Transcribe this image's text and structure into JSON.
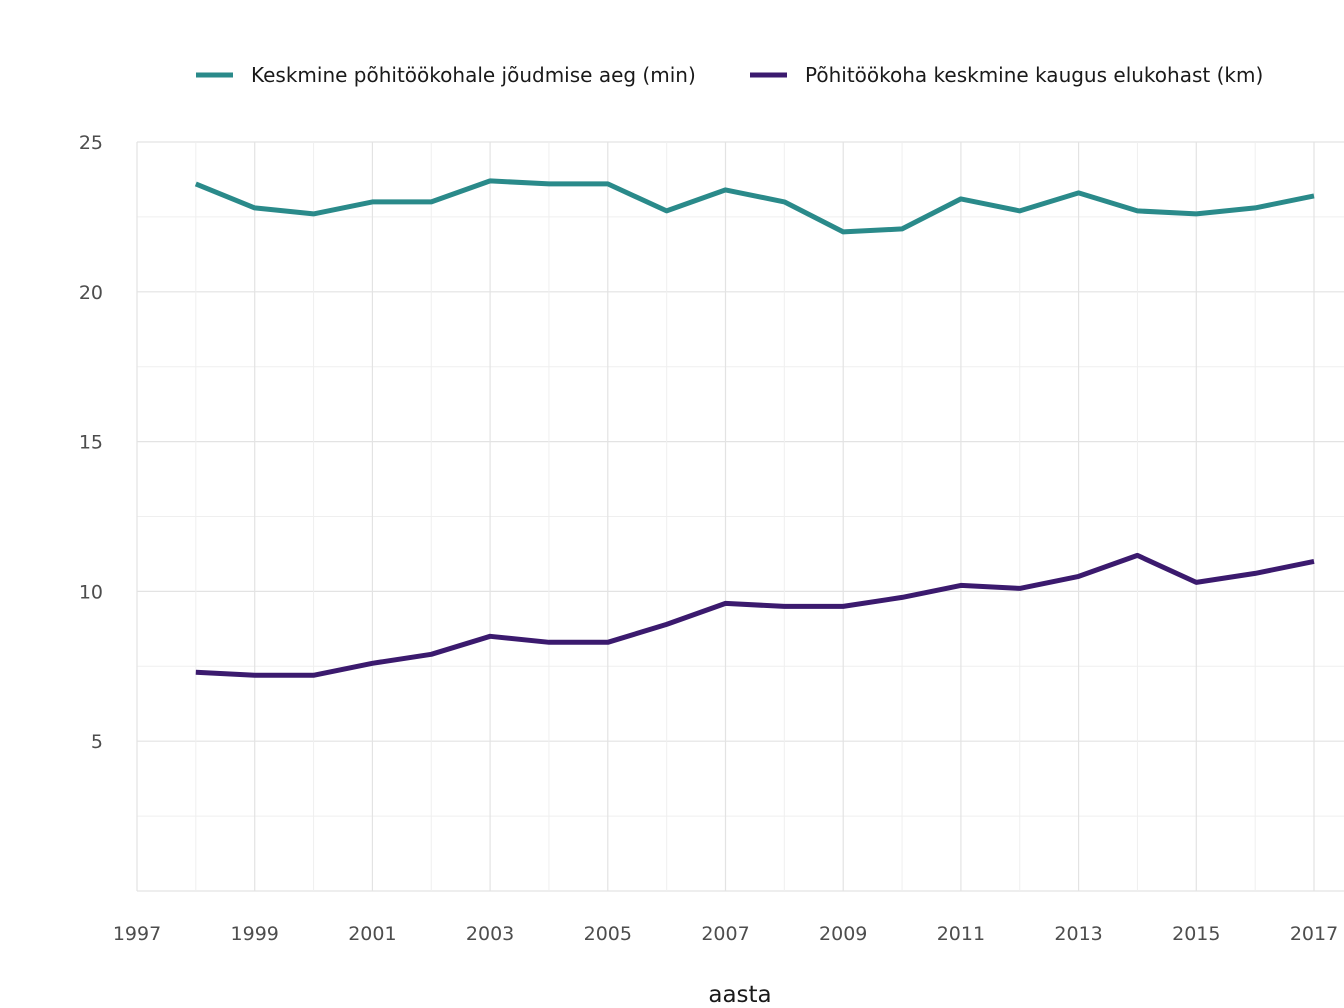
{
  "chart_data": {
    "type": "line",
    "title": "",
    "xlabel": "aasta",
    "ylabel": "",
    "xlim": [
      1997,
      2017
    ],
    "ylim": [
      0,
      25
    ],
    "x_ticks": [
      1997,
      1999,
      2001,
      2003,
      2005,
      2007,
      2009,
      2011,
      2013,
      2015,
      2017
    ],
    "y_ticks": [
      5,
      10,
      15,
      20,
      25
    ],
    "grid": true,
    "legend_position": "top",
    "x": [
      1998,
      1999,
      2000,
      2001,
      2002,
      2003,
      2004,
      2005,
      2006,
      2007,
      2008,
      2009,
      2010,
      2011,
      2012,
      2013,
      2014,
      2015,
      2016,
      2017
    ],
    "series": [
      {
        "name": "Keskmine põhitöökohale jõudmise aeg (min)",
        "color": "#2a8a8a",
        "values": [
          23.6,
          22.8,
          22.6,
          23.0,
          23.0,
          23.7,
          23.6,
          23.6,
          22.7,
          23.4,
          23.0,
          22.0,
          22.1,
          23.1,
          22.7,
          23.3,
          22.7,
          22.6,
          22.8,
          23.2
        ]
      },
      {
        "name": "Põhitöökoha keskmine kaugus elukohast (km)",
        "color": "#3b1a6e",
        "values": [
          7.3,
          7.2,
          7.2,
          7.6,
          7.9,
          8.5,
          8.3,
          8.3,
          8.9,
          9.6,
          9.5,
          9.5,
          9.8,
          10.2,
          10.1,
          10.5,
          11.2,
          10.3,
          10.6,
          11.0
        ]
      }
    ]
  }
}
